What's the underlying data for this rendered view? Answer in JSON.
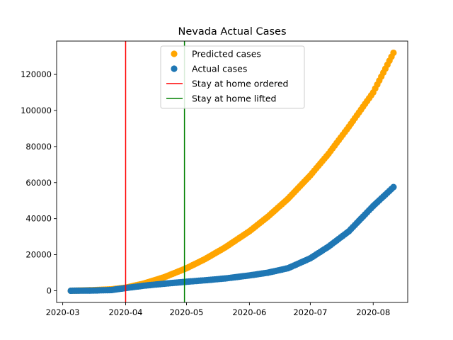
{
  "chart_data": {
    "type": "scatter",
    "title": "Nevada Actual Cases",
    "xlabel": "",
    "ylabel": "",
    "x_range": [
      "2020-02-27",
      "2020-08-18"
    ],
    "ylim": [
      -6500,
      138500
    ],
    "x_ticks": [
      "2020-03",
      "2020-04",
      "2020-05",
      "2020-06",
      "2020-07",
      "2020-08"
    ],
    "y_ticks": [
      0,
      20000,
      40000,
      60000,
      80000,
      100000,
      120000
    ],
    "grid": false,
    "legend_position": "top-center",
    "legend": [
      {
        "label": "Predicted cases",
        "kind": "marker",
        "color": "#ffa500"
      },
      {
        "label": "Actual cases",
        "kind": "marker",
        "color": "#1f77b4"
      },
      {
        "label": "Stay at home ordered",
        "kind": "line",
        "color": "#ff0000"
      },
      {
        "label": "Stay at home lifted",
        "kind": "line",
        "color": "#008000"
      }
    ],
    "vlines": [
      {
        "name": "Stay at home ordered",
        "x": "2020-04-01",
        "color": "#ff0000"
      },
      {
        "name": "Stay at home lifted",
        "x": "2020-04-30",
        "color": "#008000"
      }
    ],
    "series": [
      {
        "name": "Predicted cases",
        "color": "#ffa500",
        "x": [
          "2020-03-05",
          "2020-03-15",
          "2020-03-25",
          "2020-04-01",
          "2020-04-10",
          "2020-04-20",
          "2020-05-01",
          "2020-05-10",
          "2020-05-20",
          "2020-06-01",
          "2020-06-10",
          "2020-06-20",
          "2020-07-01",
          "2020-07-10",
          "2020-07-20",
          "2020-08-01",
          "2020-08-11"
        ],
        "y": [
          0,
          300,
          800,
          1700,
          4000,
          7500,
          12500,
          17500,
          24000,
          33000,
          41000,
          51000,
          64000,
          76000,
          91000,
          110000,
          132000
        ]
      },
      {
        "name": "Actual cases",
        "color": "#1f77b4",
        "x": [
          "2020-03-05",
          "2020-03-15",
          "2020-03-25",
          "2020-04-01",
          "2020-04-10",
          "2020-04-20",
          "2020-05-01",
          "2020-05-10",
          "2020-05-20",
          "2020-06-01",
          "2020-06-10",
          "2020-06-20",
          "2020-07-01",
          "2020-07-10",
          "2020-07-20",
          "2020-08-01",
          "2020-08-11"
        ],
        "y": [
          0,
          100,
          400,
          1500,
          2800,
          3900,
          5000,
          5800,
          6800,
          8500,
          10000,
          12500,
          18000,
          24500,
          33000,
          47000,
          57500
        ]
      }
    ]
  }
}
